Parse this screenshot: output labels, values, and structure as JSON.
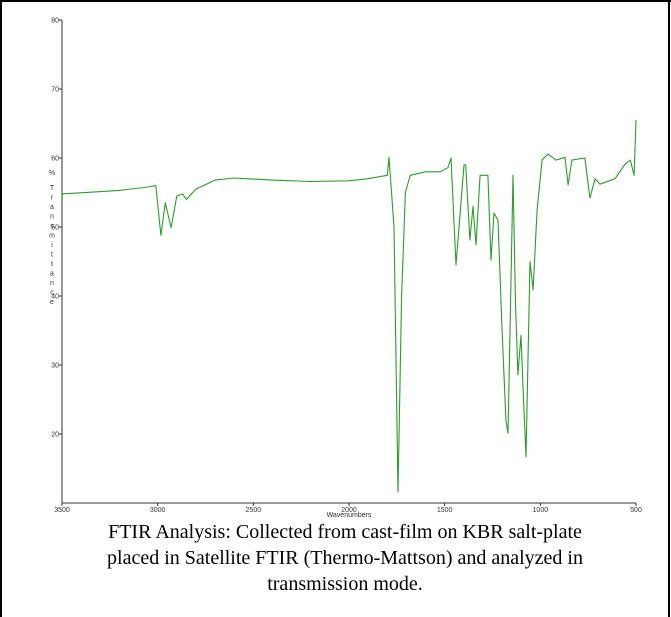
{
  "chart_data": {
    "type": "line",
    "xlabel": "Wavenumbers",
    "ylabel": "% Transmittance",
    "caption": [
      "FTIR Analysis: Collected from cast-film on KBR salt-plate",
      "placed in Satellite FTIR (Thermo-Mattson) and analyzed in",
      "transmission mode."
    ],
    "xlim": [
      3500,
      500
    ],
    "ylim": [
      10,
      80
    ],
    "xticks": [
      3500,
      3000,
      2500,
      2000,
      1500,
      1000,
      500
    ],
    "yticks": [
      20,
      30,
      40,
      50,
      60,
      70,
      80
    ],
    "series": [
      {
        "color": "#2e9b2e",
        "x": [
          3500,
          3200,
          3050,
          3010,
          2983,
          2960,
          2930,
          2900,
          2870,
          2850,
          2800,
          2700,
          2600,
          2400,
          2200,
          2000,
          1900,
          1800,
          1791,
          1765,
          1744,
          1725,
          1705,
          1680,
          1600,
          1524,
          1483,
          1467,
          1441,
          1399,
          1390,
          1368,
          1352,
          1336,
          1315,
          1274,
          1258,
          1242,
          1221,
          1200,
          1180,
          1169,
          1155,
          1143,
          1130,
          1117,
          1101,
          1088,
          1075,
          1054,
          1038,
          1017,
          991,
          960,
          918,
          871,
          855,
          835,
          767,
          741,
          714,
          688,
          610,
          557,
          530,
          510,
          500
        ],
        "values": [
          54.8,
          55.3,
          55.8,
          56,
          48.8,
          53.5,
          49.9,
          54.5,
          54.8,
          54,
          55.5,
          56.8,
          57.1,
          56.8,
          56.6,
          56.7,
          57,
          57.5,
          60.1,
          50,
          11.6,
          40,
          55,
          57.5,
          58,
          58,
          58.6,
          60,
          44.5,
          59,
          59,
          48.1,
          53,
          47.4,
          57.5,
          57.5,
          45.2,
          52,
          51,
          35,
          22,
          20.1,
          40,
          57.5,
          39,
          28.6,
          34.3,
          25,
          16.7,
          45,
          40.9,
          52.5,
          59.7,
          60.6,
          59.7,
          60.1,
          56.1,
          59.7,
          60,
          54.2,
          57,
          56.2,
          57,
          59.1,
          59.7,
          57.5,
          65.5
        ]
      }
    ]
  }
}
